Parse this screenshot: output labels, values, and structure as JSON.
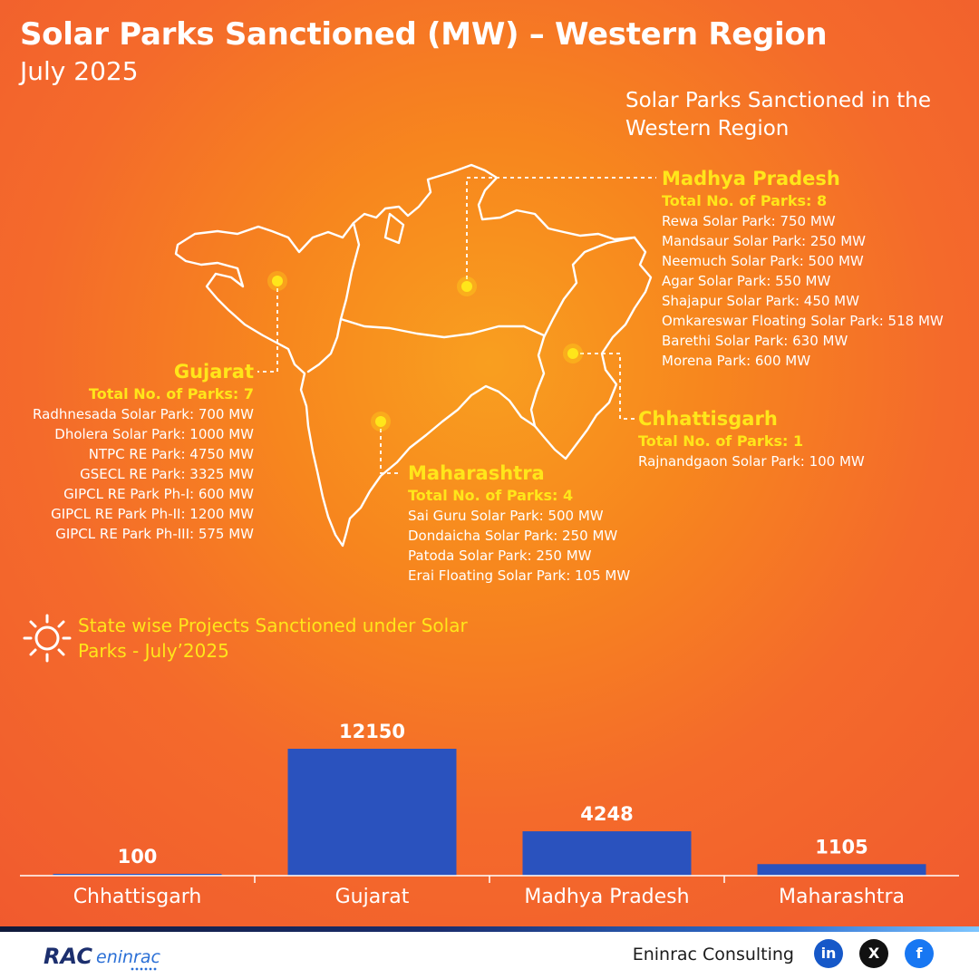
{
  "header": {
    "title": "Solar Parks Sanctioned (MW) – Western Region",
    "subtitle": "July 2025"
  },
  "map": {
    "caption": "Solar Parks Sanctioned in the Western Region",
    "states": {
      "madhya_pradesh": {
        "name": "Madhya Pradesh",
        "total": "Total No. of Parks: 8",
        "parks": [
          "Rewa Solar Park: 750 MW",
          "Mandsaur Solar Park: 250 MW",
          "Neemuch Solar Park: 500 MW",
          "Agar Solar Park: 550 MW",
          "Shajapur Solar Park: 450 MW",
          "Omkareswar Floating Solar Park: 518 MW",
          "Barethi Solar Park: 630 MW",
          "Morena Park: 600 MW"
        ]
      },
      "gujarat": {
        "name": "Gujarat",
        "total": "Total No. of Parks: 7",
        "parks": [
          "Radhnesada Solar Park: 700 MW",
          "Dholera Solar Park: 1000 MW",
          "NTPC RE Park: 4750 MW",
          "GSECL RE Park: 3325 MW",
          "GIPCL RE Park Ph-I: 600 MW",
          "GIPCL RE Park Ph-II: 1200 MW",
          "GIPCL RE Park Ph-III: 575 MW"
        ]
      },
      "chhattisgarh": {
        "name": "Chhattisgarh",
        "total": "Total No. of Parks: 1",
        "parks": [
          "Rajnandgaon Solar Park: 100 MW"
        ]
      },
      "maharashtra": {
        "name": "Maharashtra",
        "total": "Total No. of Parks: 4",
        "parks": [
          "Sai Guru Solar Park: 500 MW",
          "Dondaicha Solar Park: 250 MW",
          "Patoda Solar Park: 250 MW",
          "Erai Floating Solar Park: 105 MW"
        ]
      }
    }
  },
  "chart_heading": "State wise Projects Sanctioned under Solar Parks - July’2025",
  "chart_data": {
    "type": "bar",
    "title": "State wise Projects Sanctioned under Solar Parks - July’2025",
    "categories": [
      "Chhattisgarh",
      "Gujarat",
      "Madhya Pradesh",
      "Maharashtra"
    ],
    "values": [
      100,
      12150,
      4248,
      1105
    ],
    "data_labels": [
      "100",
      "12150",
      "4248",
      "1105"
    ],
    "xlabel": "",
    "ylabel": "",
    "ylim": [
      0,
      12150
    ],
    "grid": false,
    "bar_color": "#2a52be"
  },
  "footer": {
    "logo_text": "RAC eninrac",
    "company": "Eninrac Consulting",
    "social": {
      "linkedin": "in",
      "x": "X",
      "facebook": "f"
    }
  },
  "colors": {
    "accent_yellow": "#ffe61a",
    "bar_blue": "#2a52be"
  }
}
